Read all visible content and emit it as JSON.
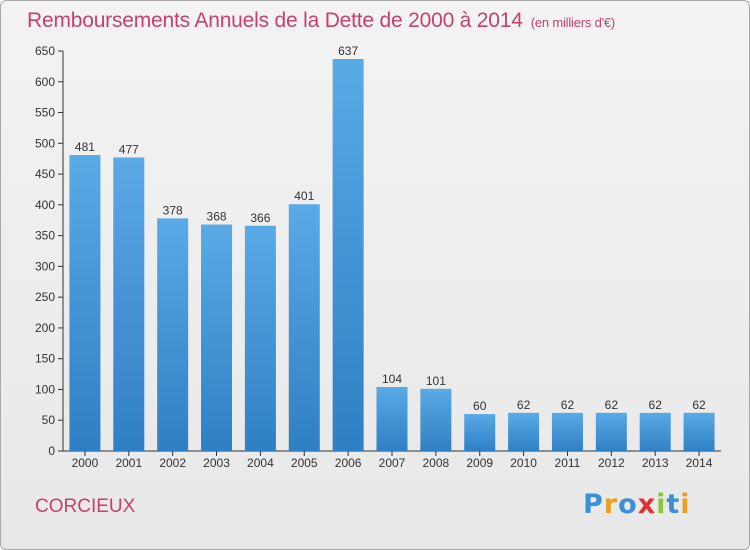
{
  "chart_data": {
    "type": "bar",
    "title": "Remboursements Annuels de la Dette de 2000 à 2014",
    "subtitle": "(en milliers d'€)",
    "xlabel": "",
    "ylabel": "",
    "categories": [
      "2000",
      "2001",
      "2002",
      "2003",
      "2004",
      "2005",
      "2006",
      "2007",
      "2008",
      "2009",
      "2010",
      "2011",
      "2012",
      "2013",
      "2014"
    ],
    "values": [
      481,
      477,
      378,
      368,
      366,
      401,
      637,
      104,
      101,
      60,
      62,
      62,
      62,
      62,
      62
    ],
    "ylim": [
      0,
      650
    ],
    "yticks": [
      0,
      50,
      100,
      150,
      200,
      250,
      300,
      350,
      400,
      450,
      500,
      550,
      600,
      650
    ],
    "grid": false,
    "bar_color": "#5aaae6",
    "bar_color_dark": "#2f7fc4"
  },
  "commune": "CORCIEUX",
  "logo": {
    "text": "Proxiti",
    "letter_colors": [
      "#3a8fd6",
      "#e8a020",
      "#3a8fd6",
      "#e03030",
      "#8cc63f",
      "#3a8fd6",
      "#e8a020"
    ]
  },
  "colors": {
    "title": "#c64070",
    "axis": "#333333"
  }
}
